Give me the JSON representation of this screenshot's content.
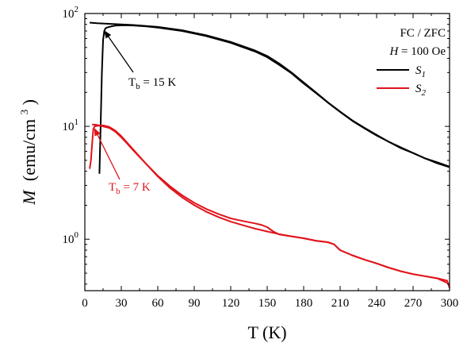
{
  "chart_data": {
    "type": "line",
    "xlabel": "T (K)",
    "ylabel": {
      "main": "M",
      "units": "(emu/cm",
      "exp": "3",
      "close": ")"
    },
    "xlim": [
      0,
      300
    ],
    "ylim": [
      0.35,
      100
    ],
    "yscale": "log",
    "x_ticks": [
      0,
      30,
      60,
      90,
      120,
      150,
      180,
      210,
      240,
      270,
      300
    ],
    "y_ticks": [
      {
        "value": 1,
        "base": "10",
        "exp": "0"
      },
      {
        "value": 10,
        "base": "10",
        "exp": "1"
      },
      {
        "value": 100,
        "base": "10",
        "exp": "2"
      }
    ],
    "legend": {
      "placement": "top-right",
      "header_line1": "FC / ZFC",
      "header_h": "H",
      "header_rest": " = 100 Oe",
      "items": [
        {
          "base": "S",
          "sub": "1",
          "color": "#000000"
        },
        {
          "base": "S",
          "sub": "2",
          "color": "#e0141b"
        }
      ]
    },
    "annotations": [
      {
        "prefix": "T",
        "sub": "b",
        "text": " = 15 K",
        "color": "#000000",
        "x": 15,
        "y": 73
      },
      {
        "prefix": "T",
        "sub": "b",
        "text": " = 7 K",
        "color": "#e0141b",
        "x": 7,
        "y": 10
      }
    ],
    "series": [
      {
        "name": "S1",
        "color": "#000000",
        "curves": [
          {
            "label": "FC",
            "x": [
              4,
              10,
              20,
              30,
              40,
              60,
              80,
              100,
              120,
              140,
              150,
              160,
              170,
              180,
              190,
              200,
              210,
              220,
              230,
              240,
              250,
              260,
              270,
              280,
              290,
              300
            ],
            "y": [
              83,
              82,
              81,
              80,
              79,
              76,
              71,
              64,
              56,
              47,
              42,
              36,
              30,
              24.5,
              20,
              16.3,
              13.5,
              11.3,
              9.7,
              8.4,
              7.3,
              6.5,
              5.8,
              5.2,
              4.8,
              4.4
            ]
          },
          {
            "label": "ZFC",
            "x": [
              12,
              13,
              14,
              15,
              16,
              17,
              18,
              20,
              22,
              25,
              30,
              35,
              40,
              50,
              60,
              80,
              100,
              120,
              140,
              150,
              160,
              170,
              180,
              190,
              200,
              210,
              220,
              230,
              240,
              250,
              260,
              270,
              280,
              290,
              300
            ],
            "y": [
              3.8,
              10,
              30,
              58,
              70,
              74,
              75,
              76,
              77,
              78,
              78.5,
              78.5,
              78.3,
              77,
              75,
              70,
              63,
              55,
              46,
              41,
              35,
              29.5,
              24,
              19.8,
              16.2,
              13.4,
              11.2,
              9.6,
              8.3,
              7.3,
              6.4,
              5.8,
              5.2,
              4.7,
              4.35
            ]
          }
        ]
      },
      {
        "name": "S2",
        "color": "#e0141b",
        "curves": [
          {
            "label": "FC",
            "x": [
              6,
              10,
              15,
              20,
              25,
              30,
              35,
              40,
              50,
              60,
              70,
              80,
              90,
              100,
              110,
              120,
              130,
              140,
              145,
              150,
              155,
              160,
              170,
              180,
              190,
              200,
              205,
              210,
              220,
              230,
              240,
              250,
              260,
              270,
              280,
              290,
              298
            ],
            "y": [
              10.4,
              10.3,
              10.0,
              9.7,
              9.0,
              8.0,
              7.0,
              6.1,
              4.7,
              3.65,
              2.95,
              2.45,
              2.1,
              1.85,
              1.67,
              1.53,
              1.45,
              1.38,
              1.34,
              1.28,
              1.17,
              1.1,
              1.06,
              1.02,
              0.97,
              0.94,
              0.9,
              0.8,
              0.72,
              0.66,
              0.61,
              0.56,
              0.52,
              0.49,
              0.47,
              0.45,
              0.41
            ]
          },
          {
            "label": "ZFC",
            "x": [
              4,
              5,
              6,
              7,
              8,
              10,
              12,
              15,
              20,
              25,
              30,
              40,
              50,
              60,
              70,
              80,
              90,
              100,
              110,
              120,
              130,
              140,
              150,
              160,
              170,
              180,
              190,
              200,
              205,
              210,
              220,
              230,
              240,
              250,
              260,
              270,
              280,
              290,
              298,
              300
            ],
            "y": [
              4.2,
              5.0,
              7.0,
              9.5,
              10.0,
              10.1,
              10.15,
              10.2,
              9.9,
              9.2,
              8.2,
              6.2,
              4.7,
              3.6,
              2.85,
              2.35,
              2.0,
              1.75,
              1.57,
              1.43,
              1.33,
              1.24,
              1.17,
              1.11,
              1.06,
              1.02,
              0.97,
              0.94,
              0.9,
              0.8,
              0.72,
              0.66,
              0.61,
              0.56,
              0.52,
              0.49,
              0.47,
              0.45,
              0.43,
              0.37
            ]
          }
        ]
      }
    ]
  }
}
